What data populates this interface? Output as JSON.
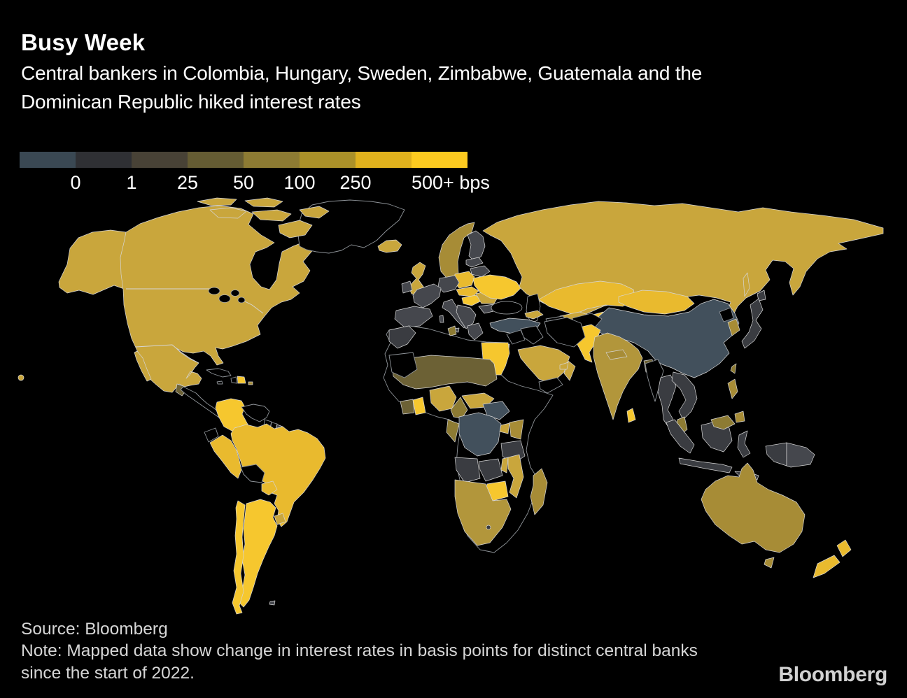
{
  "header": {
    "title": "Busy Week",
    "subtitle": "Central bankers in Colombia, Hungary, Sweden, Zimbabwe, Guatemala and the Dominican Republic hiked interest rates"
  },
  "legend": {
    "swatch_colors": [
      "#3a4853",
      "#2f3034",
      "#484236",
      "#655c33",
      "#8d7b33",
      "#ab9129",
      "#e0b11d",
      "#fcca20"
    ],
    "labels": [
      "0",
      "1",
      "25",
      "50",
      "100",
      "250",
      "500+ bps"
    ]
  },
  "footer": {
    "source": "Source: Bloomberg",
    "note": "Note: Mapped data show change in interest rates in basis points for distinct central banks since the start of 2022.",
    "logo": "Bloomberg"
  },
  "chart_data": {
    "type": "choropleth",
    "title": "Busy Week",
    "subtitle": "Central bankers in Colombia, Hungary, Sweden, Zimbabwe, Guatemala and the Dominican Republic hiked interest rates",
    "unit": "change in interest rates in basis points since start of 2022",
    "scale_breaks_bps": [
      0,
      1,
      25,
      50,
      100,
      250,
      500
    ],
    "scale_colors": [
      "#3a4853",
      "#2f3034",
      "#484236",
      "#655c33",
      "#8d7b33",
      "#ab9129",
      "#e0b11d",
      "#fcca20"
    ],
    "legend_note": "500+ bps",
    "palette": {
      "none": "#000000",
      "zero": "#42505c",
      "tiny": "#45474d",
      "small": "#3a3c41",
      "mid50": "#6c6135",
      "mid100": "#8d7b33",
      "mid150": "#a78c36",
      "mid200": "#b2963b",
      "large250": "#c9a63c",
      "large400": "#e9ba2e",
      "huge500": "#f6c72e"
    },
    "regions": {
      "hawaii": "large250",
      "alaska": "large250",
      "north-america-main": "large250",
      "baja": "large250",
      "greenland": "none",
      "arctic-1": "large250",
      "arctic-2": "large250",
      "arctic-3": "large250",
      "arctic-4": "large250",
      "arctic-5": "large250",
      "arctic-6": "large250",
      "cuba": "none",
      "haiti": "none",
      "dominican-republic": "huge500",
      "jamaica": "none",
      "puerto-rico": "mid150",
      "guatemala": "mid50",
      "central-america": "none",
      "colombia": "huge500",
      "venezuela": "none",
      "guyana": "none",
      "suriname": "none",
      "french-guiana": "tiny",
      "ecuador": "none",
      "peru": "large400",
      "brazil": "large400",
      "bolivia": "none",
      "paraguay": "large400",
      "uruguay": "large250",
      "argentina": "huge500",
      "chile": "huge500",
      "falklands": "tiny",
      "iceland": "large250",
      "uk": "large250",
      "ireland": "tiny",
      "norway-sweden": "mid150",
      "finland": "tiny",
      "denmark": "tiny",
      "baltics": "tiny",
      "belarus": "tiny",
      "poland": "large400",
      "germany": "tiny",
      "france": "tiny",
      "iberia": "tiny",
      "italy": "tiny",
      "sicily": "tiny",
      "sardinia": "tiny",
      "czech-slovakia": "large400",
      "hungary": "huge500",
      "balkans": "tiny",
      "greece": "tiny",
      "romania": "large250",
      "bulgaria": "tiny",
      "ukraine": "huge500",
      "moldova": "huge500",
      "turkey": "zero",
      "caucasus": "large250",
      "russia": "large250",
      "kazakhstan": "large400",
      "uzbekistan": "large250",
      "turkmenistan": "none",
      "kyrgyzstan-tajikistan": "huge500",
      "china": "zero",
      "mongolia": "large400",
      "taiwan": "mid100",
      "north-korea": "none",
      "south-korea": "mid150",
      "japan": "small",
      "hokkaido": "small",
      "sakhalin": "large250",
      "india": "mid200",
      "pakistan": "huge500",
      "afghanistan": "none",
      "nepal": "mid150",
      "bangladesh": "mid50",
      "sri-lanka": "huge500",
      "myanmar": "none",
      "thailand": "small",
      "vietnam-laos": "small",
      "malaysia-peninsula": "mid100",
      "malaysia-borneo": "mid100",
      "indonesia-sumatra": "small",
      "indonesia-java": "small",
      "indonesia-borneo": "small",
      "indonesia-sulawesi": "small",
      "indonesia-lesser-sunda": "small",
      "papua-west": "small",
      "papua-new-guinea": "tiny",
      "philippines-luzon": "mid150",
      "philippines-mindanao": "mid150",
      "australia": "mid150",
      "tasmania": "mid150",
      "new-zealand-north": "large400",
      "new-zealand-south": "large400",
      "africa-base": "none",
      "morocco": "small",
      "tunisia": "mid100",
      "egypt": "huge500",
      "mauritania": "none",
      "sahel": "mid50",
      "cote-divoire": "mid50",
      "ghana": "huge500",
      "nigeria": "large250",
      "cameroon": "mid100",
      "central-african-republic": "large250",
      "south-sudan": "zero",
      "uganda": "large250",
      "kenya": "mid150",
      "drc": "zero",
      "congo-gabon": "mid100",
      "tanzania": "small",
      "angola": "small",
      "zambia": "small",
      "malawi": "large250",
      "mozambique": "large250",
      "zimbabwe": "huge500",
      "southern-africa": "mid200",
      "lesotho": "small",
      "madagascar": "mid150",
      "saudi-arabia": "large250",
      "yemen": "none",
      "oman": "large250",
      "uae": "large250",
      "iraq": "none",
      "syria-jordan": "none",
      "israel": "large250",
      "iran": "none"
    }
  }
}
